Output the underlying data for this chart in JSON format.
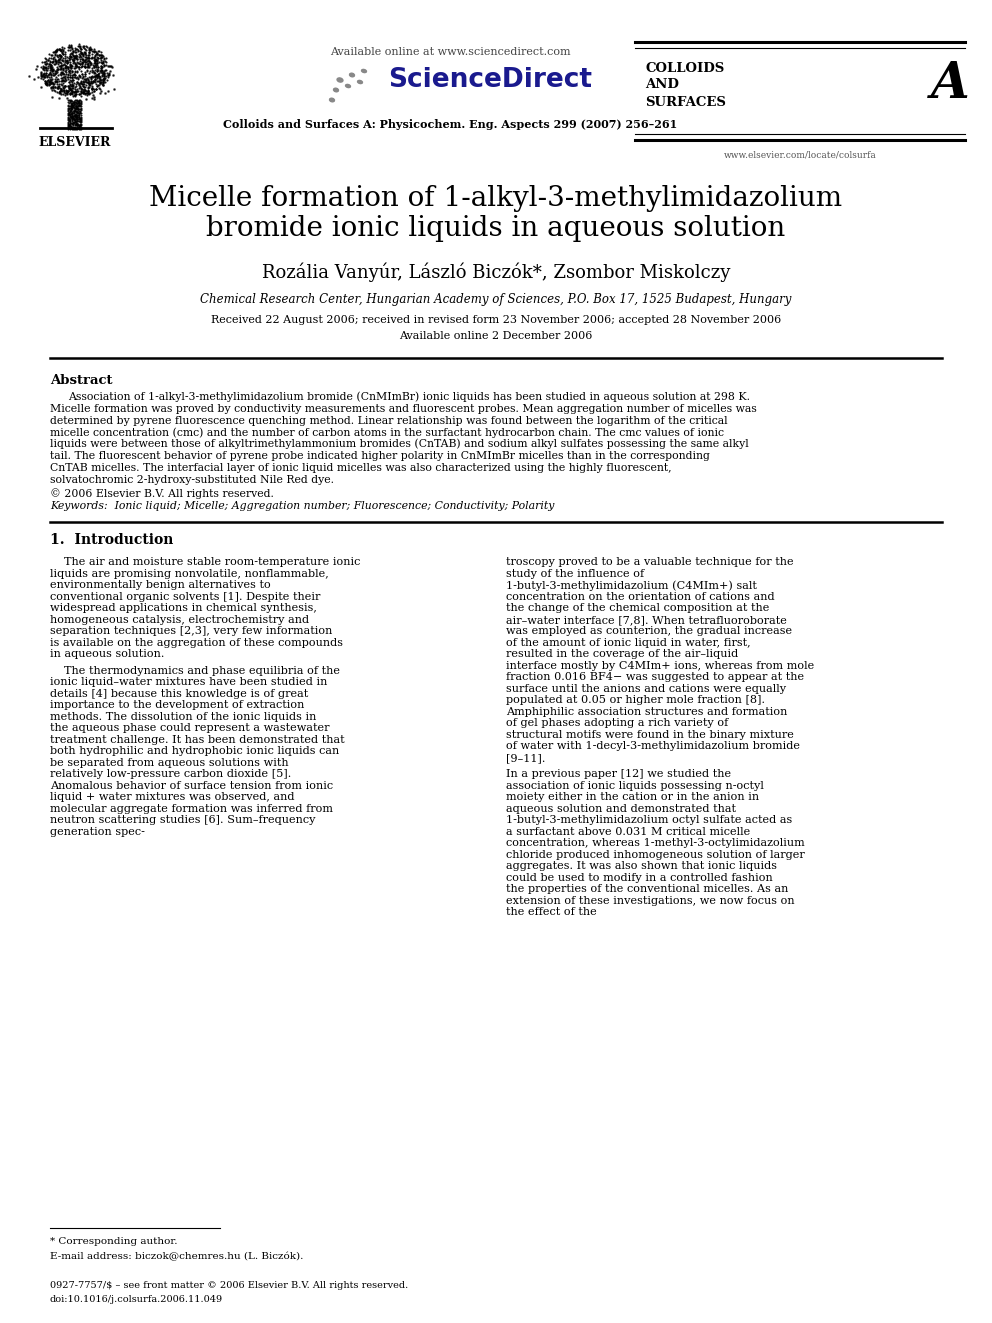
{
  "title_line1": "Micelle formation of 1-alkyl-3-methylimidazolium",
  "title_line2": "bromide ionic liquids in aqueous solution",
  "authors": "Rozália Vanyúr, László Biczók*, Zsombor Miskolczy",
  "affiliation": "Chemical Research Center, Hungarian Academy of Sciences, P.O. Box 17, 1525 Budapest, Hungary",
  "received": "Received 22 August 2006; received in revised form 23 November 2006; accepted 28 November 2006",
  "available": "Available online 2 December 2006",
  "journal_ref": "Colloids and Surfaces A: Physicochem. Eng. Aspects 299 (2007) 256–261",
  "available_online_header": "Available online at www.sciencedirect.com",
  "sciencedirect": "ScienceDirect",
  "journal_name_line1": "COLLOIDS",
  "journal_name_line2": "AND",
  "journal_name_line3": "SURFACES",
  "journal_letter": "A",
  "elsevier": "ELSEVIER",
  "website": "www.elsevier.com/locate/colsurfa",
  "abstract_title": "Abstract",
  "abstract_text": "Association of 1-alkyl-3-methylimidazolium bromide (CnMImBr) ionic liquids has been studied in aqueous solution at 298 K. Micelle formation was proved by conductivity measurements and fluorescent probes. Mean aggregation number of micelles was determined by pyrene fluorescence quenching method. Linear relationship was found between the logarithm of the critical micelle concentration (cmc) and the number of carbon atoms in the surfactant hydrocarbon chain. The cmc values of ionic liquids were between those of alkyltrimethylammonium bromides (CnTAB) and sodium alkyl sulfates possessing the same alkyl tail. The fluorescent behavior of pyrene probe indicated higher polarity in CnMImBr micelles than in the corresponding CnTAB micelles. The interfacial layer of ionic liquid micelles was also characterized using the highly fluorescent, solvatochromic 2-hydroxy-substituted Nile Red dye.",
  "copyright": "© 2006 Elsevier B.V. All rights reserved.",
  "keywords": "Keywords:  Ionic liquid; Micelle; Aggregation number; Fluorescence; Conductivity; Polarity",
  "section1_title": "1.  Introduction",
  "intro_col1_para1": "The air and moisture stable room-temperature ionic liquids are promising nonvolatile, nonflammable, environmentally benign alternatives to conventional organic solvents [1]. Despite their widespread applications in chemical synthesis, homogeneous catalysis, electrochemistry and separation techniques [2,3], very few information is available on the aggregation of these compounds in aqueous solution.",
  "intro_col1_para2": "The thermodynamics and phase equilibria of the ionic liquid–water mixtures have been studied in details [4] because this knowledge is of great importance to the development of extraction methods. The dissolution of the ionic liquids in the aqueous phase could represent a wastewater treatment challenge. It has been demonstrated that both hydrophilic and hydrophobic ionic liquids can be separated from aqueous solutions with relatively low-pressure carbon dioxide [5]. Anomalous behavior of surface tension from ionic liquid + water mixtures was observed, and molecular aggregate formation was inferred from neutron scattering studies [6]. Sum–frequency generation spec-",
  "intro_col2_para1": "troscopy proved to be a valuable technique for the study of the influence of 1-butyl-3-methylimidazolium (C4MIm+) salt concentration on the orientation of cations and the change of the chemical composition at the air–water interface [7,8]. When tetrafluoroborate was employed as counterion, the gradual increase of the amount of ionic liquid in water, first, resulted in the coverage of the air–liquid interface mostly by C4MIm+ ions, whereas from mole fraction 0.016 BF4− was suggested to appear at the surface until the anions and cations were equally populated at 0.05 or higher mole fraction [8]. Amphiphilic association structures and formation of gel phases adopting a rich variety of structural motifs were found in the binary mixture of water with 1-decyl-3-methylimidazolium bromide [9–11].",
  "intro_col2_para2": "In a previous paper [12] we studied the association of ionic liquids possessing n-octyl moiety either in the cation or in the anion in aqueous solution and demonstrated that 1-butyl-3-methylimidazolium octyl sulfate acted as a surfactant above 0.031 M critical micelle concentration, whereas 1-methyl-3-octylimidazolium chloride produced inhomogeneous solution of larger aggregates. It was also shown that ionic liquids could be used to modify in a controlled fashion the properties of the conventional micelles. As an extension of these investigations, we now focus on the effect of the",
  "footnote_star": "* Corresponding author.",
  "footnote_email": "E-mail address: biczok@chemres.hu (L. Biczók).",
  "footer_issn": "0927-7757/$ – see front matter © 2006 Elsevier B.V. All rights reserved.",
  "footer_doi": "doi:10.1016/j.colsurfa.2006.11.049",
  "bg_color": "#ffffff",
  "text_color": "#000000",
  "title_color": "#000000"
}
